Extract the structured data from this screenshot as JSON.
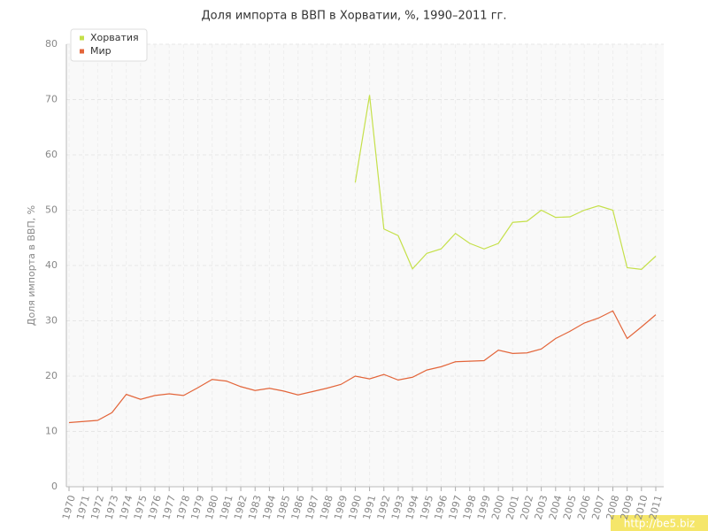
{
  "chart_data": {
    "type": "line",
    "title": "Доля импорта в ВВП в Хорватии, %, 1990–2011 гг.",
    "y_label": "Доля импорта в ВВП, %",
    "watermark": "http://be5.biz",
    "categories": [
      "1970",
      "1971",
      "1972",
      "1973",
      "1974",
      "1975",
      "1976",
      "1977",
      "1978",
      "1979",
      "1980",
      "1981",
      "1982",
      "1983",
      "1984",
      "1985",
      "1986",
      "1987",
      "1988",
      "1989",
      "1990",
      "1991",
      "1992",
      "1993",
      "1994",
      "1995",
      "1996",
      "1997",
      "1998",
      "1999",
      "2000",
      "2001",
      "2002",
      "2003",
      "2004",
      "2005",
      "2006",
      "2007",
      "2008",
      "2009",
      "2010",
      "2011"
    ],
    "series": [
      {
        "name": "Хорватия",
        "color": "#c5e04a",
        "values": [
          null,
          null,
          null,
          null,
          null,
          null,
          null,
          null,
          null,
          null,
          null,
          null,
          null,
          null,
          null,
          null,
          null,
          null,
          null,
          null,
          55,
          70.8,
          46.6,
          45.4,
          39.4,
          42.2,
          43,
          45.8,
          44,
          43,
          44,
          47.8,
          48,
          50,
          48.7,
          48.8,
          50,
          50.8,
          50,
          39.6,
          39.3,
          41.7
        ]
      },
      {
        "name": "Мир",
        "color": "#e3653a",
        "values": [
          11.6,
          11.8,
          12,
          13.4,
          16.7,
          15.8,
          16.5,
          16.8,
          16.5,
          17.9,
          19.4,
          19.1,
          18.1,
          17.4,
          17.8,
          17.3,
          16.6,
          17.2,
          17.8,
          18.5,
          20,
          19.5,
          20.3,
          19.3,
          19.8,
          21.1,
          21.7,
          22.6,
          22.7,
          22.8,
          24.7,
          24.1,
          24.2,
          24.9,
          26.8,
          28.1,
          29.6,
          30.5,
          31.8,
          26.8,
          28.9,
          31.1
        ]
      }
    ],
    "ylim": [
      0,
      80
    ],
    "yticks": [
      0,
      10,
      20,
      30,
      40,
      50,
      60,
      70,
      80
    ],
    "grid": true,
    "legend": "top-left"
  }
}
